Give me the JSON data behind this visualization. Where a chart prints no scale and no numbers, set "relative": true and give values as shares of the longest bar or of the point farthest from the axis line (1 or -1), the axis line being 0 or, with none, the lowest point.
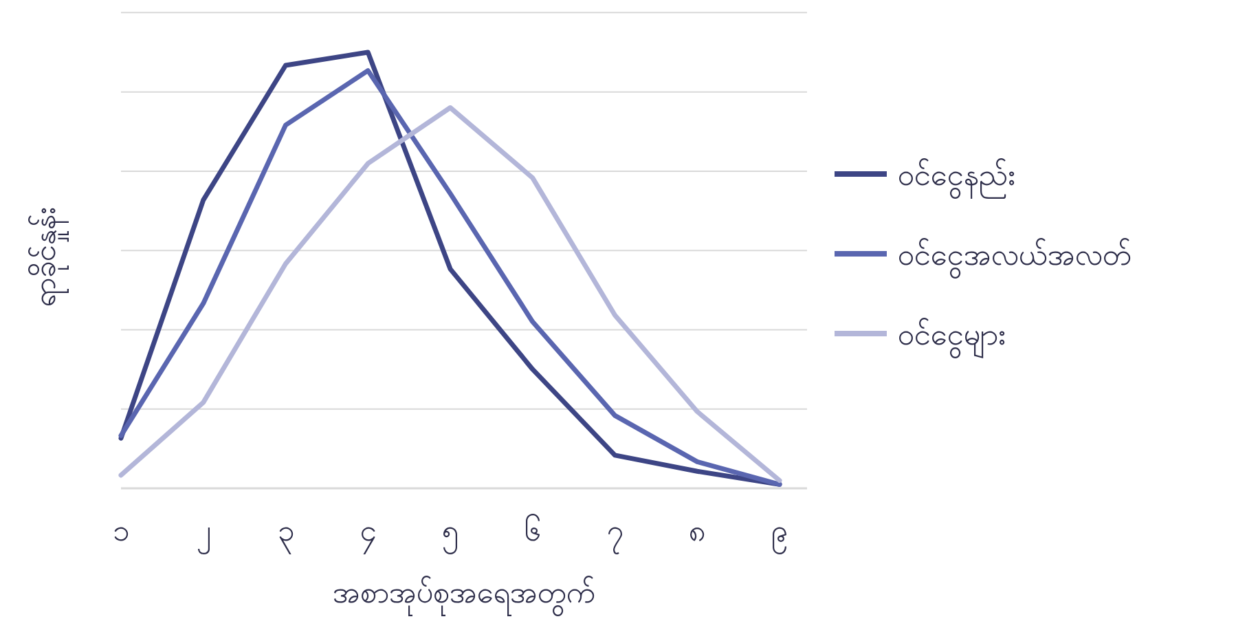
{
  "chart_data": {
    "type": "line",
    "relative": true,
    "xlabel": "အစာအုပ်စုအရေအတွက်",
    "ylabel": "ရာခိုင်နှုန်း",
    "categories": [
      "၁",
      "၂",
      "၃",
      "၄",
      "၅",
      "၆",
      "၇",
      "၈",
      "၉"
    ],
    "grid": "y",
    "legend": "right",
    "marker": "none",
    "line_style": "solid",
    "series": [
      {
        "name": "ဝင်ငွေနည်း",
        "color": "#3d4585",
        "values": [
          0.115,
          0.661,
          0.97,
          1,
          0.503,
          0.273,
          0.076,
          0.039,
          0.009
        ]
      },
      {
        "name": "ဝင်ငွေအလယ်အလတ်",
        "color": "#5a66b0",
        "values": [
          0.121,
          0.424,
          0.833,
          0.958,
          0.676,
          0.382,
          0.167,
          0.061,
          0.009
        ]
      },
      {
        "name": "ဝင်ငွေများ",
        "color": "#b3b6d9",
        "values": [
          0.03,
          0.197,
          0.515,
          0.745,
          0.873,
          0.712,
          0.397,
          0.176,
          0.018
        ]
      }
    ]
  }
}
